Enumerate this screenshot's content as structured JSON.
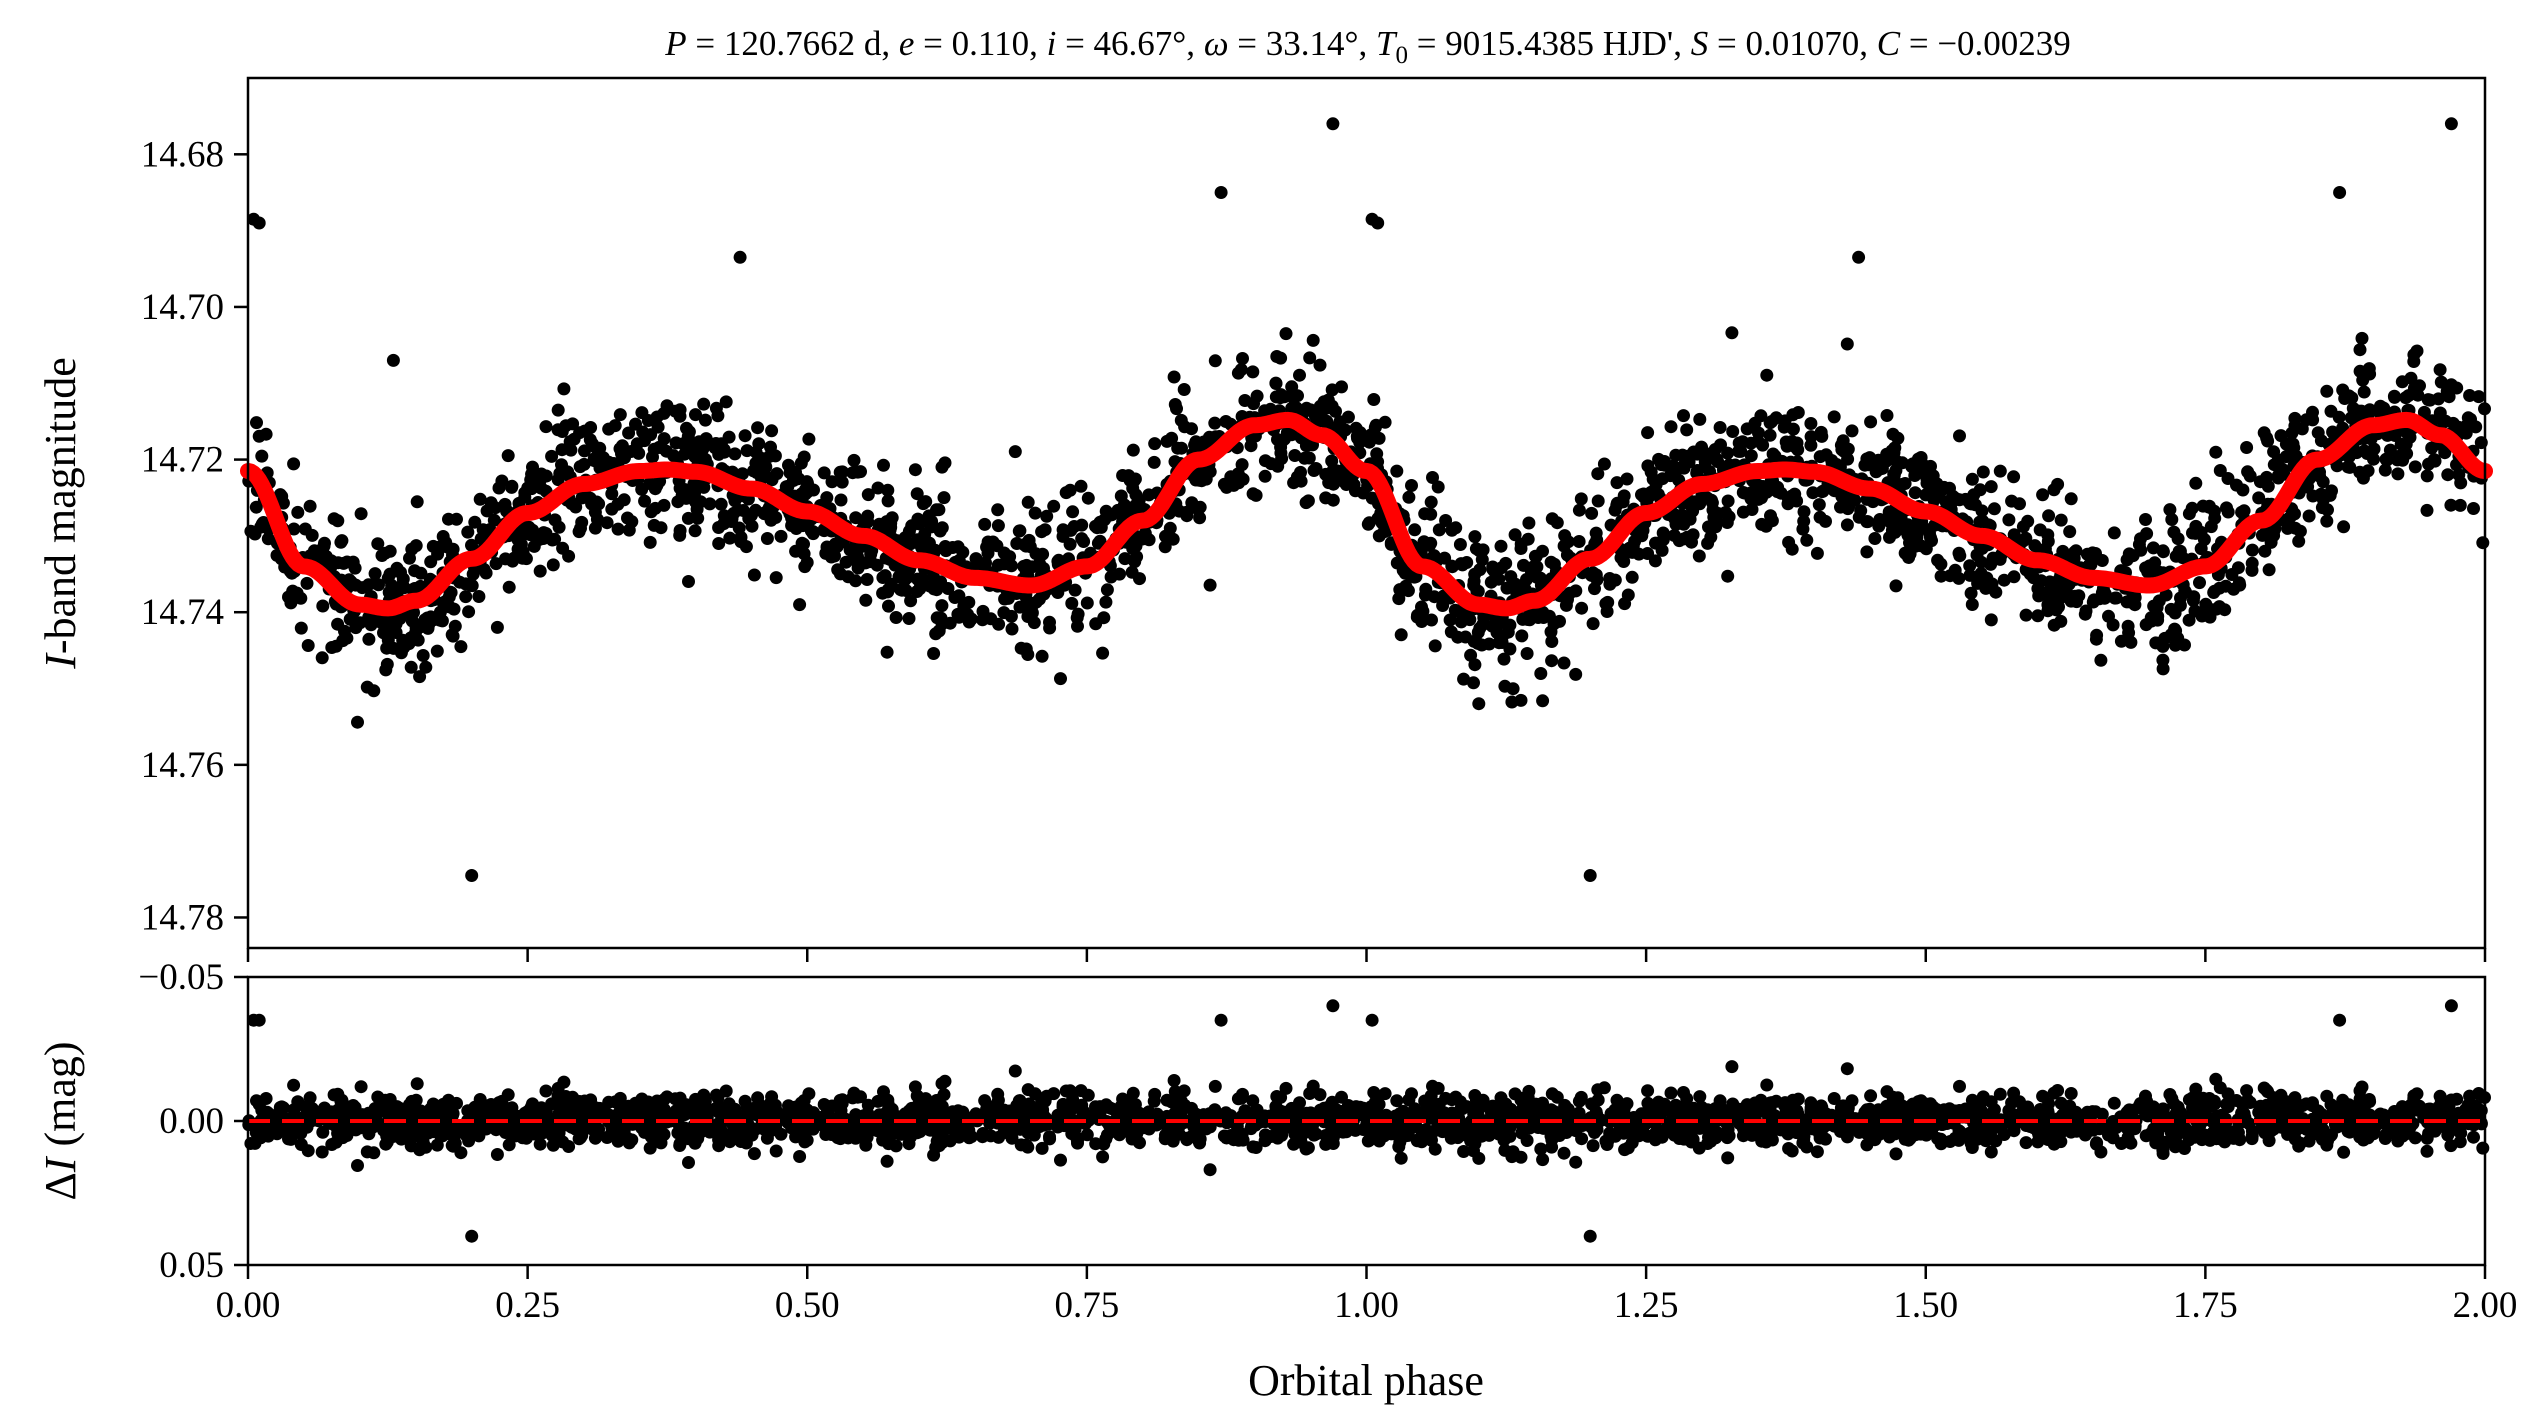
{
  "chart_data": [
    {
      "type": "scatter",
      "panel": "top",
      "title": "P = 120.7662 d, e = 0.110, i = 46.67°, ω = 33.14°, T0 = 9015.4385 HJD', S = 0.01070, C = −0.00239",
      "title_parts": [
        "P",
        " = 120.7662 d, ",
        "e",
        " = 0.110, ",
        "i",
        " = 46.67°, ",
        "ω",
        " = 33.14°, ",
        "T",
        "0",
        " = 9015.4385 HJD', ",
        "S",
        " = 0.01070, ",
        "C",
        " = −0.00239"
      ],
      "ylabel_italic": "I",
      "ylabel_rest": "-band magnitude",
      "xlim": [
        0.0,
        2.0
      ],
      "ylim": [
        14.67,
        14.784
      ],
      "y_inverted": true,
      "yticks": [
        14.68,
        14.7,
        14.72,
        14.74,
        14.76,
        14.78
      ],
      "ytick_labels": [
        "14.68",
        "14.70",
        "14.72",
        "14.74",
        "14.76",
        "14.78"
      ],
      "model_curve": {
        "color": "#ff0000",
        "x": [
          0.0,
          0.05,
          0.1,
          0.125,
          0.15,
          0.2,
          0.25,
          0.3,
          0.35,
          0.375,
          0.4,
          0.45,
          0.5,
          0.55,
          0.6,
          0.65,
          0.7,
          0.75,
          0.8,
          0.85,
          0.9,
          0.93,
          0.96,
          1.0
        ],
        "y": [
          14.7215,
          14.734,
          14.739,
          14.7395,
          14.7385,
          14.733,
          14.727,
          14.7232,
          14.7215,
          14.7213,
          14.7216,
          14.7238,
          14.7268,
          14.73,
          14.7332,
          14.7355,
          14.7365,
          14.734,
          14.728,
          14.72,
          14.7155,
          14.7148,
          14.7168,
          14.7215
        ]
      },
      "observations": {
        "color": "#000000",
        "scatter_sigma_mag": 0.0045,
        "outliers_x": [
          0.005,
          0.01,
          0.13,
          0.2,
          0.44,
          0.87,
          0.97,
          1.005,
          1.01,
          1.2,
          1.44,
          1.87,
          1.97
        ],
        "outliers_y": [
          14.6885,
          14.689,
          14.707,
          14.7745,
          14.6935,
          14.685,
          14.676,
          14.6885,
          14.689,
          14.7745,
          14.6935,
          14.685,
          14.676
        ]
      }
    },
    {
      "type": "scatter",
      "panel": "bottom",
      "xlabel": "Orbital phase",
      "ylabel_prefix": "Δ",
      "ylabel_italic": "I",
      "ylabel_rest": " (mag)",
      "xlim": [
        0.0,
        2.0
      ],
      "ylim": [
        -0.05,
        0.05
      ],
      "y_inverted": true,
      "yticks": [
        -0.05,
        0.0,
        0.05
      ],
      "ytick_labels": [
        "−0.05",
        "0.00",
        "0.05"
      ],
      "xticks": [
        0.0,
        0.25,
        0.5,
        0.75,
        1.0,
        1.25,
        1.5,
        1.75,
        2.0
      ],
      "xtick_labels": [
        "0.00",
        "0.25",
        "0.50",
        "0.75",
        "1.00",
        "1.25",
        "1.50",
        "1.75",
        "2.00"
      ],
      "zero_line": {
        "y": 0.0,
        "color": "#ff0000",
        "style": "dashed"
      },
      "residuals": {
        "color": "#000000",
        "scatter_sigma_mag": 0.0045,
        "outliers_x": [
          0.005,
          0.01,
          0.2,
          0.87,
          0.97,
          1.005,
          1.2,
          1.87,
          1.97
        ],
        "outliers_y": [
          -0.035,
          -0.035,
          0.04,
          -0.035,
          -0.04,
          -0.035,
          0.04,
          -0.035,
          -0.04
        ]
      }
    }
  ]
}
